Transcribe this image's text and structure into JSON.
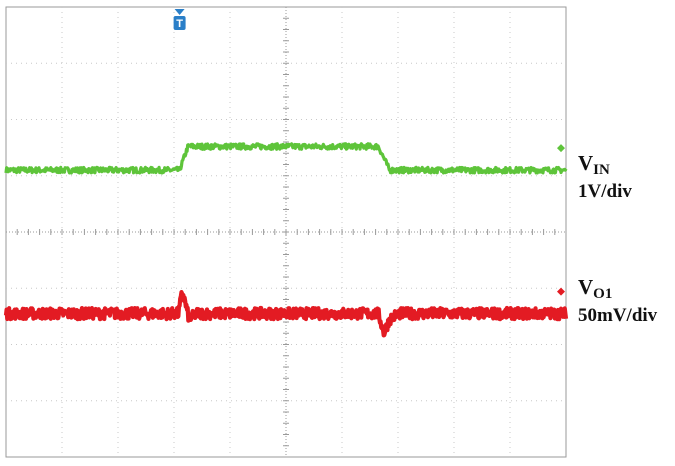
{
  "chart_data": {
    "type": "line",
    "title": "",
    "grid": true,
    "x_divisions": 10,
    "y_divisions": 8,
    "series": [
      {
        "name": "VIN",
        "label_main": "V",
        "label_sub": "IN",
        "scale": "1V/div",
        "color": "#5ec43a",
        "x": [
          0,
          3.1,
          3.25,
          6.65,
          6.85,
          10
        ],
        "y": [
          5.1,
          5.1,
          5.52,
          5.52,
          5.1,
          5.1
        ]
      },
      {
        "name": "VO1",
        "label_main": "V",
        "label_sub": "O1",
        "scale": "50mV/div",
        "color": "#e31b23",
        "x": [
          0,
          3.08,
          3.15,
          3.27,
          3.4,
          6.65,
          6.75,
          6.85,
          7.0,
          10
        ],
        "y": [
          2.55,
          2.55,
          2.95,
          2.45,
          2.55,
          2.55,
          2.2,
          2.45,
          2.55,
          2.55
        ]
      }
    ],
    "trigger_marker": {
      "label": "T",
      "x": 3.1
    }
  }
}
